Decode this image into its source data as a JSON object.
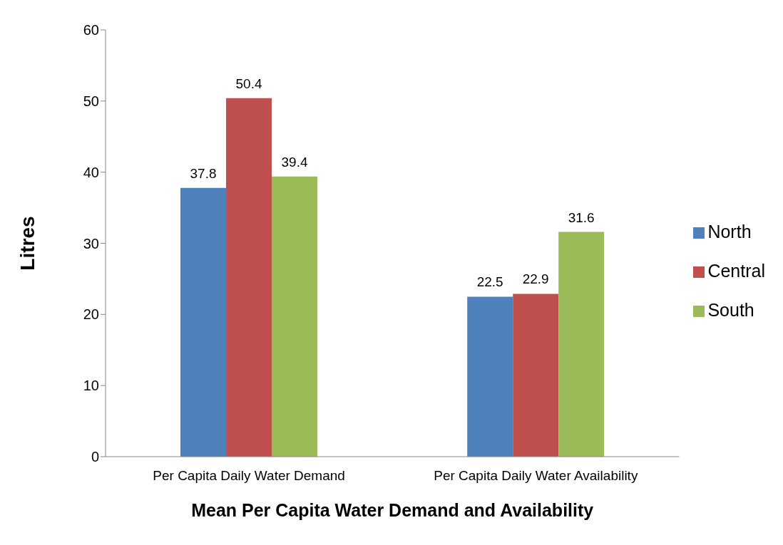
{
  "chart_data": {
    "type": "bar",
    "xlabel": "Mean Per Capita Water Demand and Availability",
    "ylabel": "Litres",
    "categories": [
      "Per Capita Daily Water Demand",
      "Per Capita Daily Water Availability"
    ],
    "series": [
      {
        "name": "North",
        "color": "#4f81bd",
        "values": [
          37.8,
          22.5
        ]
      },
      {
        "name": "Central",
        "color": "#c0504d",
        "values": [
          50.4,
          22.9
        ]
      },
      {
        "name": "South",
        "color": "#9bbb59",
        "values": [
          39.4,
          31.6
        ]
      }
    ],
    "ylim": [
      0,
      60
    ],
    "yticks": [
      0,
      10,
      20,
      30,
      40,
      50,
      60
    ],
    "data_labels": true,
    "legend": "right",
    "grid": false
  }
}
